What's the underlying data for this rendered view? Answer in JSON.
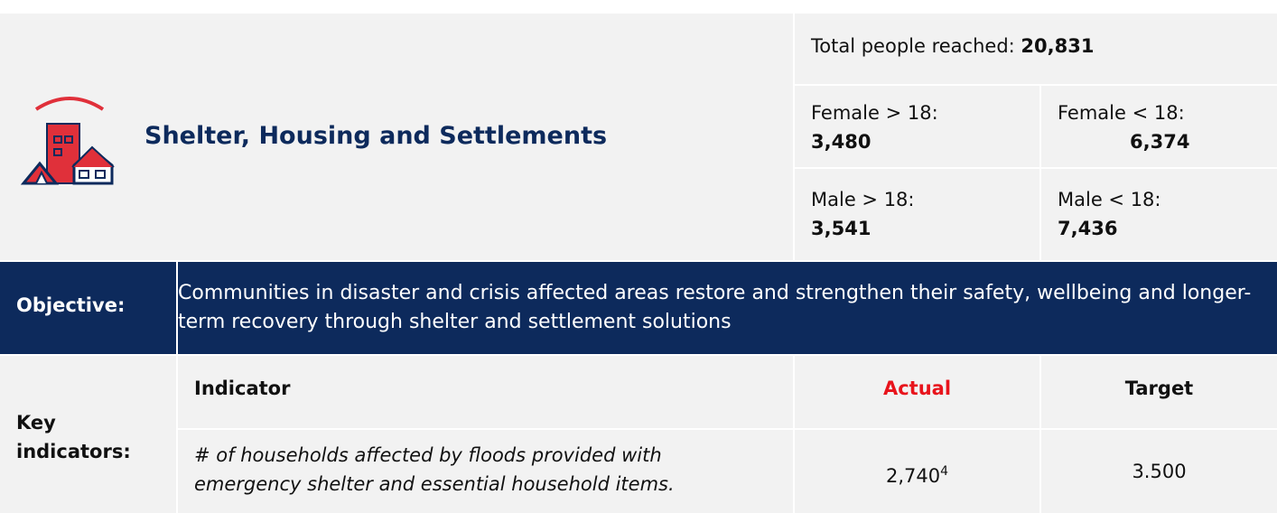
{
  "header": {
    "title": "Shelter, Housing and Settlements"
  },
  "people": {
    "total_label": "Total people reached:",
    "total": "20,831",
    "groups": [
      {
        "label": "Female > 18:",
        "value": "3,480"
      },
      {
        "label": "Female < 18:",
        "value": "6,374"
      },
      {
        "label": "Male > 18:",
        "value": "3,541"
      },
      {
        "label": "Male < 18:",
        "value": "7,436"
      }
    ]
  },
  "objective": {
    "label": "Objective:",
    "text": "Communities in disaster and crisis affected areas restore and strengthen their safety, wellbeing and longer-term recovery through shelter and settlement solutions"
  },
  "indicators": {
    "label": "Key indicators:",
    "columns": [
      "Indicator",
      "Actual",
      "Target"
    ],
    "rows": [
      {
        "indicator": "# of households affected by floods provided with emergency shelter and essential household items.",
        "actual": "2,740",
        "actual_note": "4",
        "target": "3.500"
      }
    ]
  }
}
